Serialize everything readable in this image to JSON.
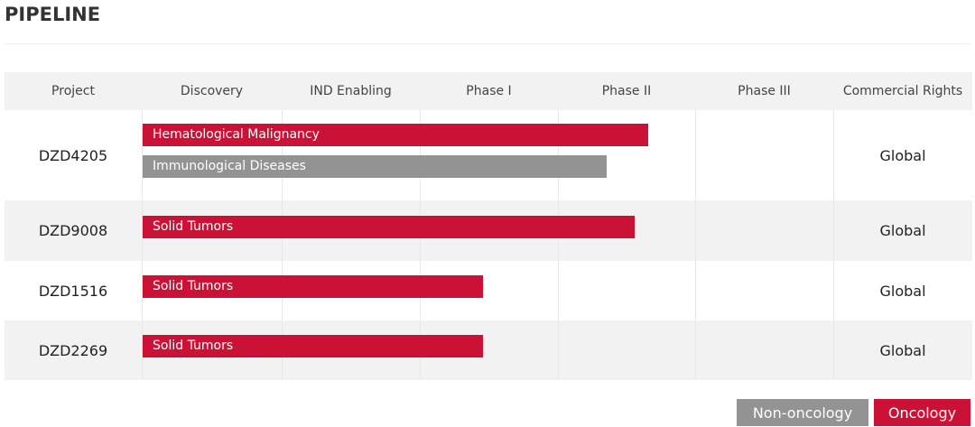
{
  "header": {
    "title": "PIPELINE"
  },
  "table": {
    "columns": [
      "Project",
      "Discovery",
      "IND Enabling",
      "Phase I",
      "Phase II",
      "Phase III",
      "Commercial Rights"
    ],
    "rows": [
      {
        "project": "DZD4205",
        "bars": [
          "Hematological Malignancy",
          "Immunological Diseases"
        ],
        "rights": "Global"
      },
      {
        "project": "DZD9008",
        "bars": [
          "Solid Tumors"
        ],
        "rights": "Global"
      },
      {
        "project": "DZD1516",
        "bars": [
          "Solid Tumors"
        ],
        "rights": "Global"
      },
      {
        "project": "DZD2269",
        "bars": [
          "Solid Tumors"
        ],
        "rights": "Global"
      }
    ]
  },
  "legend": [
    "Non-oncology",
    "Oncology"
  ]
}
